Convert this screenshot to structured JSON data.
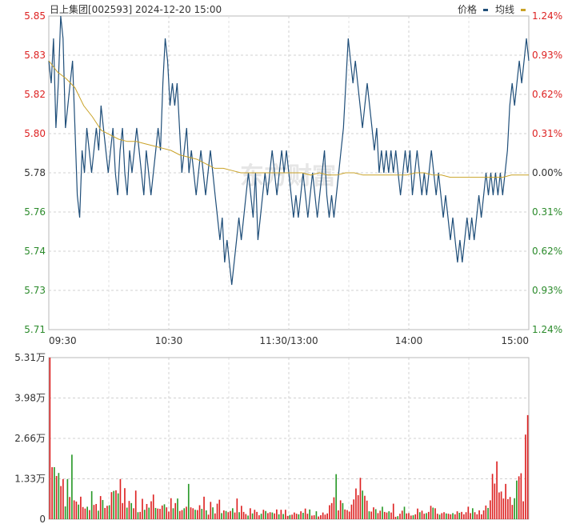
{
  "header": {
    "title": "日上集团[002593] 2024-12-20 15:00",
    "legend_price": "价格",
    "legend_avg": "均线",
    "price_color": "#1f4e79",
    "avg_color": "#c9a227"
  },
  "watermark": "东方财富",
  "chart_data": [
    {
      "type": "line",
      "series": [
        {
          "name": "价格",
          "values": [
            5.83,
            5.82,
            5.84,
            5.8,
            5.82,
            5.85,
            5.84,
            5.8,
            5.81,
            5.82,
            5.83,
            5.8,
            5.77,
            5.76,
            5.79,
            5.78,
            5.8,
            5.79,
            5.78,
            5.79,
            5.8,
            5.79,
            5.81,
            5.8,
            5.79,
            5.78,
            5.79,
            5.8,
            5.78,
            5.77,
            5.79,
            5.8,
            5.78,
            5.77,
            5.79,
            5.78,
            5.79,
            5.8,
            5.79,
            5.78,
            5.77,
            5.79,
            5.78,
            5.77,
            5.78,
            5.79,
            5.8,
            5.79,
            5.82,
            5.84,
            5.83,
            5.81,
            5.82,
            5.81,
            5.82,
            5.8,
            5.78,
            5.79,
            5.8,
            5.78,
            5.79,
            5.78,
            5.77,
            5.78,
            5.79,
            5.78,
            5.77,
            5.78,
            5.79,
            5.78,
            5.77,
            5.76,
            5.75,
            5.76,
            5.74,
            5.75,
            5.74,
            5.73,
            5.74,
            5.75,
            5.76,
            5.75,
            5.76,
            5.77,
            5.78,
            5.77,
            5.76,
            5.78,
            5.75,
            5.76,
            5.77,
            5.78,
            5.77,
            5.78,
            5.79,
            5.78,
            5.77,
            5.78,
            5.79,
            5.78,
            5.79,
            5.78,
            5.77,
            5.76,
            5.77,
            5.76,
            5.77,
            5.78,
            5.77,
            5.76,
            5.77,
            5.78,
            5.77,
            5.76,
            5.77,
            5.78,
            5.79,
            5.77,
            5.76,
            5.77,
            5.76,
            5.77,
            5.78,
            5.79,
            5.8,
            5.82,
            5.84,
            5.83,
            5.82,
            5.83,
            5.82,
            5.81,
            5.8,
            5.81,
            5.82,
            5.81,
            5.8,
            5.79,
            5.8,
            5.78,
            5.79,
            5.78,
            5.79,
            5.78,
            5.79,
            5.78,
            5.79,
            5.78,
            5.77,
            5.78,
            5.79,
            5.78,
            5.79,
            5.77,
            5.78,
            5.79,
            5.78,
            5.77,
            5.78,
            5.77,
            5.78,
            5.79,
            5.78,
            5.77,
            5.78,
            5.77,
            5.76,
            5.77,
            5.76,
            5.75,
            5.76,
            5.75,
            5.74,
            5.75,
            5.74,
            5.75,
            5.76,
            5.75,
            5.76,
            5.75,
            5.76,
            5.77,
            5.76,
            5.77,
            5.78,
            5.77,
            5.78,
            5.77,
            5.78,
            5.77,
            5.78,
            5.77,
            5.78,
            5.79,
            5.81,
            5.82,
            5.81,
            5.82,
            5.83,
            5.82,
            5.83,
            5.84,
            5.83
          ]
        },
        {
          "name": "均线",
          "values": [
            5.83,
            5.825,
            5.822,
            5.818,
            5.81,
            5.805,
            5.799,
            5.797,
            5.795,
            5.794,
            5.794,
            5.793,
            5.792,
            5.791,
            5.79,
            5.788,
            5.787,
            5.786,
            5.784,
            5.782,
            5.782,
            5.781,
            5.78,
            5.78,
            5.78,
            5.78,
            5.78,
            5.78,
            5.78,
            5.78,
            5.779,
            5.78,
            5.779,
            5.779,
            5.78,
            5.78,
            5.779,
            5.779,
            5.779,
            5.779,
            5.779,
            5.779,
            5.78,
            5.78,
            5.779,
            5.779,
            5.778,
            5.778,
            5.778,
            5.778,
            5.778,
            5.778,
            5.778,
            5.779,
            5.779,
            5.779
          ]
        }
      ],
      "ylim": [
        5.71,
        5.85
      ],
      "y_ticks": [
        "5.85",
        "5.83",
        "5.82",
        "5.80",
        "5.78",
        "5.76",
        "5.74",
        "5.73",
        "5.71"
      ],
      "pct_ticks": [
        "1.24%",
        "0.93%",
        "0.62%",
        "0.31%",
        "0.00%",
        "0.31%",
        "0.62%",
        "0.93%",
        "1.24%"
      ],
      "x_ticks": [
        "09:30",
        "10:30",
        "11:30/13:00",
        "14:00",
        "15:00"
      ],
      "grid": true
    },
    {
      "type": "bar",
      "ylim": [
        0,
        5.31
      ],
      "y_ticks": [
        "5.31万",
        "3.98万",
        "2.66万",
        "1.33万",
        "0"
      ],
      "values": [
        5.31,
        1.71,
        1.71,
        1.42,
        1.52,
        1.09,
        1.32,
        0.42,
        1.32,
        0.73,
        2.12,
        0.62,
        0.58,
        0.48,
        0.74,
        0.4,
        0.35,
        0.41,
        0.3,
        0.92,
        0.47,
        0.5,
        0.28,
        0.76,
        0.63,
        0.37,
        0.44,
        0.46,
        0.89,
        0.93,
        0.95,
        0.85,
        1.32,
        0.53,
        1.02,
        0.38,
        0.6,
        0.53,
        0.36,
        0.94,
        0.23,
        0.24,
        0.67,
        0.31,
        0.5,
        0.38,
        0.59,
        0.81,
        0.37,
        0.35,
        0.34,
        0.45,
        0.49,
        0.39,
        0.25,
        0.69,
        0.36,
        0.53,
        0.68,
        0.27,
        0.3,
        0.36,
        0.41,
        1.16,
        0.39,
        0.36,
        0.31,
        0.3,
        0.46,
        0.34,
        0.74,
        0.29,
        0.15,
        0.57,
        0.39,
        0.19,
        0.51,
        0.64,
        0.2,
        0.29,
        0.27,
        0.23,
        0.27,
        0.36,
        0.22,
        0.68,
        0.23,
        0.44,
        0.24,
        0.17,
        0.12,
        0.36,
        0.19,
        0.31,
        0.24,
        0.13,
        0.18,
        0.31,
        0.27,
        0.2,
        0.23,
        0.22,
        0.19,
        0.32,
        0.16,
        0.31,
        0.17,
        0.31,
        0.11,
        0.14,
        0.15,
        0.22,
        0.18,
        0.16,
        0.26,
        0.21,
        0.35,
        0.18,
        0.32,
        0.12,
        0.13,
        0.26,
        0.09,
        0.13,
        0.22,
        0.15,
        0.19,
        0.46,
        0.53,
        0.72,
        1.48,
        0.29,
        0.62,
        0.53,
        0.32,
        0.3,
        0.25,
        0.48,
        0.65,
        1.01,
        0.79,
        1.36,
        0.94,
        0.77,
        0.61,
        0.26,
        0.25,
        0.39,
        0.33,
        0.2,
        0.28,
        0.41,
        0.24,
        0.22,
        0.26,
        0.22,
        0.51,
        0.08,
        0.1,
        0.18,
        0.28,
        0.41,
        0.19,
        0.2,
        0.12,
        0.13,
        0.16,
        0.35,
        0.23,
        0.28,
        0.18,
        0.2,
        0.24,
        0.44,
        0.38,
        0.36,
        0.18,
        0.15,
        0.2,
        0.23,
        0.19,
        0.18,
        0.16,
        0.2,
        0.16,
        0.26,
        0.21,
        0.24,
        0.16,
        0.23,
        0.41,
        0.2,
        0.36,
        0.23,
        0.16,
        0.29,
        0.16,
        0.29,
        0.45,
        0.37,
        0.62,
        1.49,
        1.17,
        1.9,
        0.88,
        0.91,
        0.68,
        1.16,
        0.66,
        0.73,
        0.47,
        0.69,
        1.27,
        1.41,
        1.51,
        0.59,
        2.78,
        3.42
      ],
      "colors": [
        "r",
        "r",
        "g",
        "r",
        "g",
        "r",
        "r",
        "g",
        "g",
        "r",
        "g",
        "r",
        "r",
        "g",
        "r",
        "r",
        "r",
        "g",
        "r",
        "g",
        "r",
        "r",
        "g",
        "r",
        "g",
        "r",
        "r",
        "g",
        "r",
        "g",
        "r",
        "g",
        "r",
        "r",
        "r",
        "g",
        "r",
        "g",
        "r",
        "r",
        "g",
        "r",
        "r",
        "g",
        "r",
        "g",
        "r",
        "r",
        "g",
        "r",
        "r",
        "r",
        "g",
        "r",
        "r",
        "r",
        "g",
        "r",
        "g",
        "r",
        "r",
        "g",
        "r",
        "g",
        "r",
        "r",
        "g",
        "r",
        "r",
        "g",
        "r",
        "g",
        "r",
        "r",
        "g",
        "r",
        "r",
        "r",
        "g",
        "r",
        "g",
        "r",
        "r",
        "g",
        "r",
        "r",
        "g",
        "r",
        "r",
        "r",
        "g",
        "r",
        "g",
        "r",
        "r",
        "r",
        "g",
        "r",
        "g",
        "r",
        "r",
        "g",
        "r",
        "r",
        "g",
        "r",
        "g",
        "r",
        "r",
        "g",
        "r",
        "r",
        "r",
        "g",
        "r",
        "g",
        "r",
        "r",
        "g",
        "r",
        "r",
        "g",
        "r",
        "r",
        "r",
        "r",
        "r",
        "r",
        "r",
        "r",
        "g",
        "r",
        "r",
        "g",
        "r",
        "r",
        "r",
        "r",
        "r",
        "r",
        "r",
        "r",
        "g",
        "r",
        "r",
        "g",
        "r",
        "r",
        "g",
        "r",
        "r",
        "g",
        "r",
        "r",
        "g",
        "r",
        "r",
        "r",
        "g",
        "r",
        "r",
        "g",
        "r",
        "r",
        "r",
        "g",
        "r",
        "r",
        "g",
        "r",
        "r",
        "g",
        "r",
        "r",
        "g",
        "r",
        "r",
        "g",
        "r",
        "r",
        "g",
        "r",
        "r",
        "g",
        "r",
        "r",
        "g",
        "r",
        "r",
        "r",
        "r",
        "r",
        "g",
        "r",
        "r",
        "r",
        "r",
        "r",
        "r",
        "g",
        "r",
        "r",
        "r",
        "r",
        "r",
        "r",
        "r",
        "r",
        "r",
        "r",
        "r",
        "g",
        "g"
      ]
    }
  ]
}
